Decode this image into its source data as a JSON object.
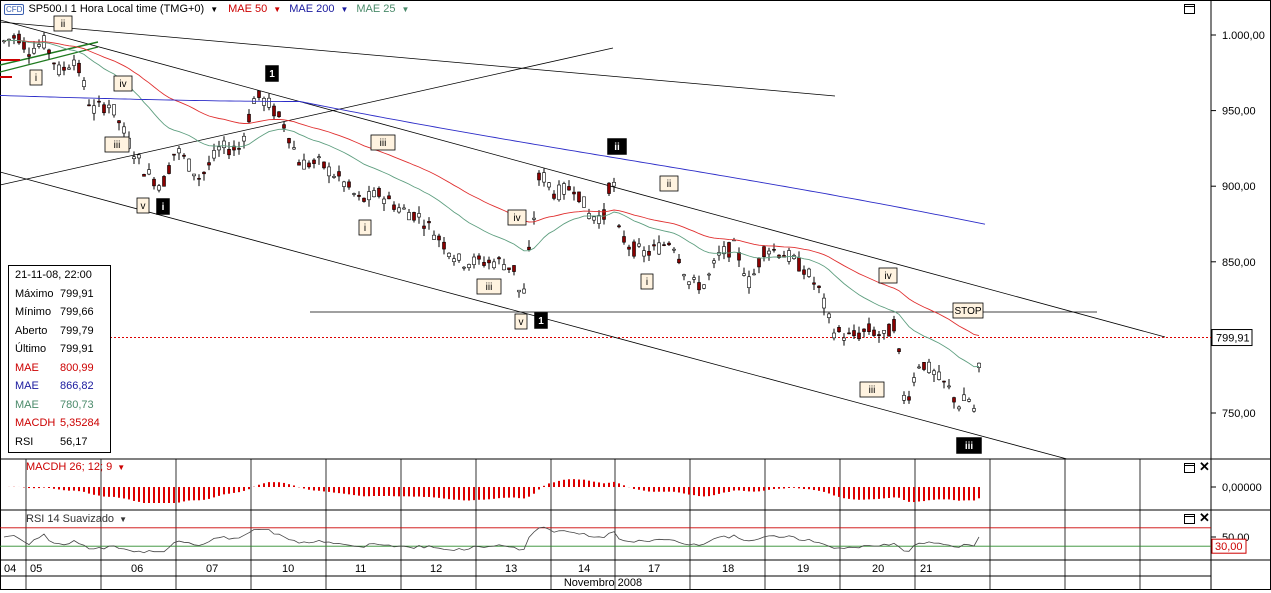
{
  "header": {
    "badge": "CFD",
    "instrument": "SP500.I 1 Hora Local time (TMG+0)",
    "ma50_label": "MAE 50",
    "ma200_label": "MAE 200",
    "ma25_label": "MAE 25"
  },
  "info": {
    "datetime": "21-11-08, 22:00",
    "rows": [
      {
        "k": "Máximo",
        "v": "799,91",
        "color": "#000000"
      },
      {
        "k": "Mínimo",
        "v": "799,66",
        "color": "#000000"
      },
      {
        "k": "Aberto",
        "v": "799,79",
        "color": "#000000"
      },
      {
        "k": "Último",
        "v": "799,91",
        "color": "#000000"
      },
      {
        "k": "MAE",
        "v": "800,99",
        "color": "#cc0000"
      },
      {
        "k": "MAE",
        "v": "866,82",
        "color": "#1a1a9e"
      },
      {
        "k": "MAE",
        "v": "780,73",
        "color": "#4a8a6a"
      },
      {
        "k": "MACDH",
        "v": "5,35284",
        "color": "#cc0000"
      },
      {
        "k": "RSI",
        "v": "56,17",
        "color": "#000000"
      }
    ]
  },
  "panes": {
    "macd_label": "MACDH 26; 12; 9",
    "rsi_label": "RSI 14 Suavizado"
  },
  "axis": {
    "price_ticks": [
      "1.000,00",
      "950,00",
      "900,00",
      "850,00",
      "800,00",
      "750,00"
    ],
    "current_price_label": "799,91",
    "macd_tick": "0,00000",
    "rsi_ticks": [
      "50,00",
      "30,00"
    ],
    "month_label": "Novembro 2008",
    "day_labels": [
      "04",
      "05",
      "06",
      "07",
      "10",
      "11",
      "12",
      "13",
      "14",
      "17",
      "18",
      "19",
      "20",
      "21"
    ]
  },
  "wave_labels": [
    {
      "t": "ii",
      "style": "light"
    },
    {
      "t": "i",
      "style": "light"
    },
    {
      "t": "iv",
      "style": "light"
    },
    {
      "t": "iii",
      "style": "light"
    },
    {
      "t": "v",
      "style": "light"
    },
    {
      "t": "1",
      "style": "bold"
    },
    {
      "t": "i",
      "style": "bold"
    },
    {
      "t": "iii",
      "style": "light"
    },
    {
      "t": "i",
      "style": "light"
    },
    {
      "t": "iii",
      "style": "light"
    },
    {
      "t": "iv",
      "style": "light"
    },
    {
      "t": "v",
      "style": "light"
    },
    {
      "t": "1",
      "style": "bold"
    },
    {
      "t": "ii",
      "style": "bold"
    },
    {
      "t": "ii",
      "style": "light"
    },
    {
      "t": "i",
      "style": "light"
    },
    {
      "t": "iv",
      "style": "light"
    },
    {
      "t": "iii",
      "style": "light"
    },
    {
      "t": "iii",
      "style": "bold"
    },
    {
      "t": "STOP",
      "style": "light"
    }
  ],
  "chart_data": {
    "type": "candlestick",
    "title": "SP500.I 1 Hora Local time (TMG+0)",
    "x_label": "Novembro 2008",
    "y_range": [
      715,
      1015
    ],
    "last_price": 799.91,
    "stop_level": 816,
    "series_names": [
      "MAE 50",
      "MAE 200",
      "MAE 25"
    ],
    "ma_colors": {
      "MAE 50": "#e03030",
      "MAE 200": "#2c2cc8",
      "MAE 25": "#5f9f80"
    },
    "ohlc_daily": [
      {
        "day": "04",
        "open": 995,
        "high": 1007,
        "low": 978,
        "close": 990
      },
      {
        "day": "05",
        "open": 990,
        "high": 992,
        "low": 945,
        "close": 955
      },
      {
        "day": "06",
        "open": 955,
        "high": 958,
        "low": 898,
        "close": 905
      },
      {
        "day": "07",
        "open": 905,
        "high": 935,
        "low": 898,
        "close": 930
      },
      {
        "day": "10",
        "open": 930,
        "high": 963,
        "low": 912,
        "close": 918
      },
      {
        "day": "11",
        "open": 918,
        "high": 920,
        "low": 880,
        "close": 898
      },
      {
        "day": "12",
        "open": 898,
        "high": 900,
        "low": 845,
        "close": 852
      },
      {
        "day": "13",
        "open": 852,
        "high": 915,
        "low": 815,
        "close": 910
      },
      {
        "day": "14",
        "open": 910,
        "high": 920,
        "low": 870,
        "close": 875
      },
      {
        "day": "17",
        "open": 875,
        "high": 880,
        "low": 845,
        "close": 855
      },
      {
        "day": "18",
        "open": 855,
        "high": 868,
        "low": 830,
        "close": 860
      },
      {
        "day": "19",
        "open": 860,
        "high": 866,
        "low": 805,
        "close": 808
      },
      {
        "day": "20",
        "open": 808,
        "high": 820,
        "low": 748,
        "close": 755
      },
      {
        "day": "21",
        "open": 755,
        "high": 800,
        "low": 740,
        "close": 799.91
      }
    ],
    "ma_values_last": {
      "MAE 50": 800.99,
      "MAE 200": 866.82,
      "MAE 25": 780.73
    },
    "macd_histogram_last": 5.35284,
    "rsi_last": 56.17,
    "rsi_levels": [
      70,
      30
    ]
  }
}
